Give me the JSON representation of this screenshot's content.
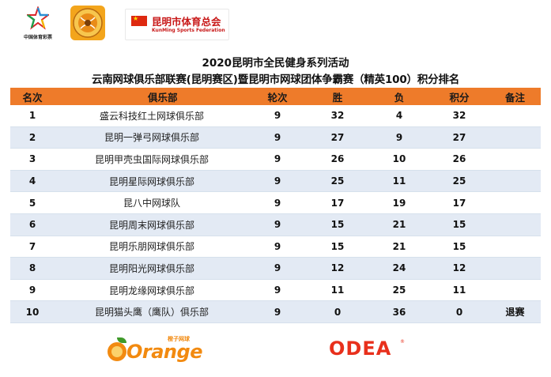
{
  "logos": {
    "lottery_text": "中国体育彩票",
    "federation_cn": "昆明市体育总会",
    "federation_en": "KunMing Sports Federation"
  },
  "title_line1": "2020昆明市全民健身系列活动",
  "title_line2": "云南网球俱乐部联赛(昆明赛区)暨昆明市网球团体争霸赛（精英100）积分排名",
  "table": {
    "headers": {
      "rank": "名次",
      "club": "俱乐部",
      "rounds": "轮次",
      "wins": "胜",
      "losses": "负",
      "points": "积分",
      "note": "备注"
    },
    "rows": [
      {
        "rank": "1",
        "club": "盛云科技红土网球俱乐部",
        "rounds": "9",
        "wins": "32",
        "losses": "4",
        "points": "32",
        "note": ""
      },
      {
        "rank": "2",
        "club": "昆明一弹弓网球俱乐部",
        "rounds": "9",
        "wins": "27",
        "losses": "9",
        "points": "27",
        "note": ""
      },
      {
        "rank": "3",
        "club": "昆明甲壳虫国际网球俱乐部",
        "rounds": "9",
        "wins": "26",
        "losses": "10",
        "points": "26",
        "note": ""
      },
      {
        "rank": "4",
        "club": "昆明星际网球俱乐部",
        "rounds": "9",
        "wins": "25",
        "losses": "11",
        "points": "25",
        "note": ""
      },
      {
        "rank": "5",
        "club": "昆八中网球队",
        "rounds": "9",
        "wins": "17",
        "losses": "19",
        "points": "17",
        "note": ""
      },
      {
        "rank": "6",
        "club": "昆明周末网球俱乐部",
        "rounds": "9",
        "wins": "15",
        "losses": "21",
        "points": "15",
        "note": ""
      },
      {
        "rank": "7",
        "club": "昆明乐朋网球俱乐部",
        "rounds": "9",
        "wins": "15",
        "losses": "21",
        "points": "15",
        "note": ""
      },
      {
        "rank": "8",
        "club": "昆明阳光网球俱乐部",
        "rounds": "9",
        "wins": "12",
        "losses": "24",
        "points": "12",
        "note": ""
      },
      {
        "rank": "9",
        "club": "昆明龙缘网球俱乐部",
        "rounds": "9",
        "wins": "11",
        "losses": "25",
        "points": "11",
        "note": ""
      },
      {
        "rank": "10",
        "club": "昆明猫头鹰（鹰队）俱乐部",
        "rounds": "9",
        "wins": "0",
        "losses": "36",
        "points": "0",
        "note": "退赛"
      }
    ]
  },
  "sponsors": {
    "orange_word": "Orange",
    "orange_cn": "橙子网球",
    "odea_word": "ODEA"
  },
  "colors": {
    "header_bg": "#ee7b2a",
    "alt_row_bg": "#e3eaf4",
    "federation_red": "#c81818",
    "orange_brand": "#f28a10",
    "odea_red": "#e8301c"
  },
  "icons": {
    "lottery": "star-logo-icon",
    "tennis": "tennis-club-badge-icon",
    "flag": "china-flag-icon",
    "orange": "orange-fruit-icon"
  }
}
